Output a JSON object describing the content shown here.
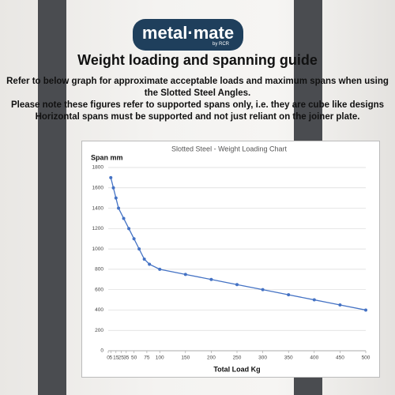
{
  "header": {
    "logo": "metal·mate",
    "logo_sub": "by RCR",
    "title": "Weight loading and spanning guide",
    "lines": [
      "Refer to below graph for approximate acceptable loads and maximum spans when using",
      "the Slotted Steel Angles.",
      "Please note these figures refer to supported spans only,  i.e. they are cube like designs",
      "Horizontal spans must be supported and not just reliant on the joiner plate."
    ]
  },
  "chart_data": {
    "type": "line",
    "title": "Slotted Steel - Weight Loading Chart",
    "y_label": "Span mm",
    "x_label": "Total Load Kg",
    "x": [
      5,
      10,
      15,
      20,
      30,
      40,
      50,
      60,
      70,
      80,
      100,
      150,
      200,
      250,
      300,
      350,
      400,
      450,
      500
    ],
    "series": [
      {
        "name": "Span mm",
        "color": "#4472c4",
        "values": [
          1700,
          1600,
          1500,
          1400,
          1300,
          1200,
          1100,
          1000,
          900,
          850,
          800,
          750,
          700,
          650,
          600,
          550,
          500,
          450,
          400
        ]
      }
    ],
    "xlim": [
      0,
      500
    ],
    "xticks": [
      0,
      5,
      15,
      25,
      35,
      50,
      75,
      100,
      150,
      200,
      250,
      300,
      350,
      400,
      450,
      500
    ],
    "ylim": [
      0,
      1800
    ],
    "yticks": [
      0,
      200,
      400,
      600,
      800,
      1000,
      1200,
      1400,
      1600,
      1800
    ],
    "grid": true
  }
}
